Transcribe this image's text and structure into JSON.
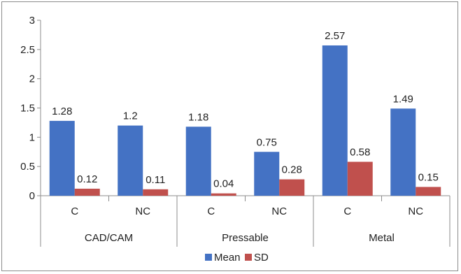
{
  "chart_data": {
    "type": "bar",
    "groups": [
      {
        "label": "CAD/CAM",
        "categories": [
          "C",
          "NC"
        ]
      },
      {
        "label": "Pressable",
        "categories": [
          "C",
          "NC"
        ]
      },
      {
        "label": "Metal",
        "categories": [
          "C",
          "NC"
        ]
      }
    ],
    "categories": [
      "C",
      "NC",
      "C",
      "NC",
      "C",
      "NC"
    ],
    "series": [
      {
        "name": "Mean",
        "color": "#4472C4",
        "values": [
          1.28,
          1.2,
          1.18,
          0.75,
          2.57,
          1.49
        ]
      },
      {
        "name": "SD",
        "color": "#C0504D",
        "values": [
          0.12,
          0.11,
          0.04,
          0.28,
          0.58,
          0.15
        ]
      }
    ],
    "data_labels": {
      "Mean": [
        "1.28",
        "1.2",
        "1.18",
        "0.75",
        "2.57",
        "1.49"
      ],
      "SD": [
        "0.12",
        "0.11",
        "0.04",
        "0.28",
        "0.58",
        "0.15"
      ]
    },
    "y_ticks": [
      "0",
      "0.5",
      "1",
      "1.5",
      "2",
      "2.5",
      "3"
    ],
    "ylim": [
      0,
      3
    ],
    "title": "",
    "xlabel": "",
    "ylabel": "",
    "grid": false,
    "legend": "bottom"
  }
}
